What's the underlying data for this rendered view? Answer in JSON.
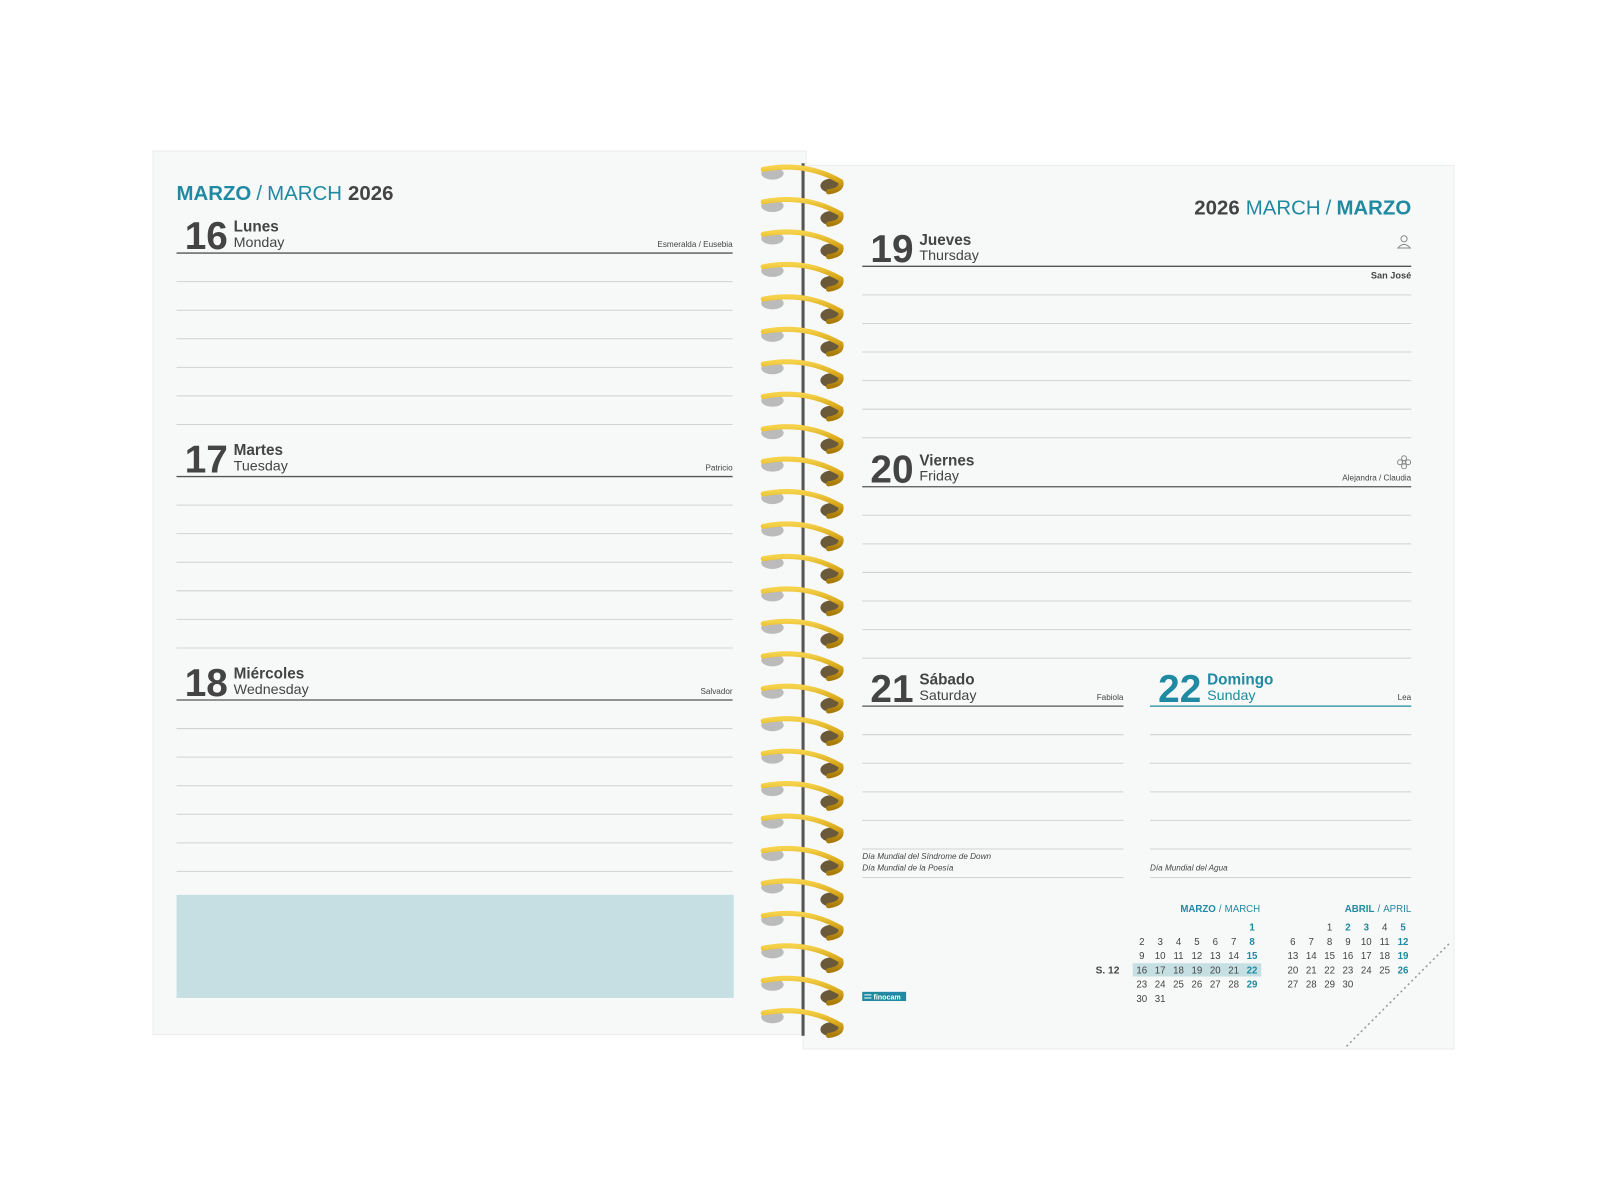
{
  "separator": "/",
  "left_page": {
    "header": {
      "month_es": "MARZO",
      "month_en": "MARCH",
      "year": "2026"
    },
    "days": [
      {
        "number": 16,
        "name_es": "Lunes",
        "name_en": "Monday",
        "saints": "Esmeralda / Eusebia"
      },
      {
        "number": 17,
        "name_es": "Martes",
        "name_en": "Tuesday",
        "saints": "Patricio"
      },
      {
        "number": 18,
        "name_es": "Miércoles",
        "name_en": "Wednesday",
        "saints": "Salvador"
      }
    ]
  },
  "right_page": {
    "header": {
      "year": "2026",
      "month_en": "MARCH",
      "month_es": "MARZO"
    },
    "days": [
      {
        "number": 19,
        "name_es": "Jueves",
        "name_en": "Thursday",
        "saints": "San José"
      },
      {
        "number": 20,
        "name_es": "Viernes",
        "name_en": "Friday",
        "saints": "Alejandra / Claudia"
      },
      {
        "number": 21,
        "name_es": "Sábado",
        "name_en": "Saturday",
        "saints": "Fabiola",
        "notes": [
          "Día Mundial del Síndrome de Down",
          "Día Mundial de la Poesía"
        ]
      },
      {
        "number": 22,
        "name_es": "Domingo",
        "name_en": "Sunday",
        "saints": "Lea",
        "notes": [
          "Día Mundial del Agua"
        ]
      }
    ],
    "brand": "finocam",
    "week_label": "S. 12",
    "mini_calendars": [
      {
        "month_es": "MARZO",
        "month_en": "MARCH",
        "weeks": [
          [
            null,
            null,
            null,
            null,
            null,
            null,
            1
          ],
          [
            2,
            3,
            4,
            5,
            6,
            7,
            8
          ],
          [
            9,
            10,
            11,
            12,
            13,
            14,
            15
          ],
          [
            16,
            17,
            18,
            19,
            20,
            21,
            22
          ],
          [
            23,
            24,
            25,
            26,
            27,
            28,
            29
          ],
          [
            30,
            31,
            null,
            null,
            null,
            null,
            null
          ]
        ]
      },
      {
        "month_es": "ABRIL",
        "month_en": "APRIL",
        "holidays": [
          2,
          3
        ],
        "weeks": [
          [
            null,
            null,
            1,
            2,
            3,
            4,
            5
          ],
          [
            6,
            7,
            8,
            9,
            10,
            11,
            12
          ],
          [
            13,
            14,
            15,
            16,
            17,
            18,
            19
          ],
          [
            20,
            21,
            22,
            23,
            24,
            25,
            26
          ],
          [
            27,
            28,
            29,
            30,
            null,
            null,
            null
          ]
        ]
      }
    ]
  }
}
